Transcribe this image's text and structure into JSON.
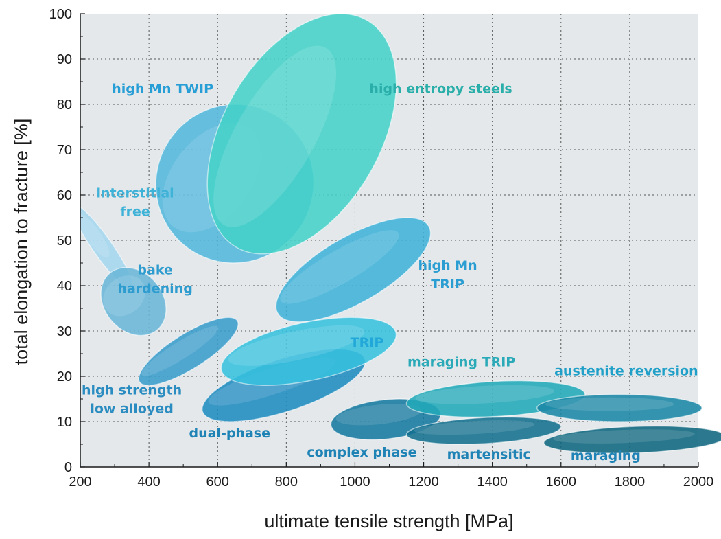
{
  "chart_data": {
    "type": "scatter",
    "title": "",
    "xlabel": "ultimate tensile strength [MPa]",
    "ylabel": "total elongation to fracture [%]",
    "xlim": [
      200,
      2000
    ],
    "ylim": [
      0,
      100
    ],
    "x_ticks": [
      "200",
      "400",
      "600",
      "800",
      "1000",
      "1200",
      "1400",
      "1600",
      "1800",
      "2000"
    ],
    "y_ticks": [
      "0",
      "10",
      "20",
      "30",
      "40",
      "50",
      "60",
      "70",
      "80",
      "90",
      "100"
    ],
    "grid": true,
    "background": "#e4e8ea",
    "regions": [
      {
        "name": "interstitial free",
        "label_lines": [
          "interstitial",
          "free"
        ],
        "x_range": [
          175,
          355
        ],
        "y_range": [
          39,
          58
        ],
        "angle_deg": -35,
        "color": "#a4d6ee",
        "label_x": 360,
        "label_y": 59.5,
        "label_color": "#3fb2d8"
      },
      {
        "name": "bake hardening",
        "label_lines": [
          "bake",
          "hardening"
        ],
        "x_range": [
          260,
          450
        ],
        "y_range": [
          29,
          44
        ],
        "angle_deg": -40,
        "color": "#6ab6d8",
        "label_x": 418,
        "label_y": 42.5,
        "label_color": "#2f9ccf"
      },
      {
        "name": "high strength low alloyed",
        "label_lines": [
          "high strength",
          "low alloyed"
        ],
        "x_range": [
          370,
          660
        ],
        "y_range": [
          18,
          33
        ],
        "angle_deg": -32,
        "color": "#3a9dcc",
        "label_x": 350,
        "label_y": 16,
        "label_color": "#2a8cc0"
      },
      {
        "name": "dual-phase",
        "label_lines": [
          "dual-phase"
        ],
        "x_range": [
          555,
          1030
        ],
        "y_range": [
          10,
          26
        ],
        "angle_deg": -18,
        "color": "#1f8bbf",
        "label_x": 635,
        "label_y": 6.5,
        "label_color": "#1f83b6"
      },
      {
        "name": "complex phase",
        "label_lines": [
          "complex phase"
        ],
        "x_range": [
          930,
          1250
        ],
        "y_range": [
          6,
          15
        ],
        "angle_deg": -6,
        "color": "#16799f",
        "label_x": 1020,
        "label_y": 2.3,
        "label_color": "#1f83b6"
      },
      {
        "name": "martensitic",
        "label_lines": [
          "martensitic"
        ],
        "x_range": [
          1150,
          1600
        ],
        "y_range": [
          5,
          11
        ],
        "angle_deg": -3,
        "color": "#136f8e",
        "label_x": 1390,
        "label_y": 1.8,
        "label_color": "#1f83b6"
      },
      {
        "name": "maraging",
        "label_lines": [
          "maraging"
        ],
        "x_range": [
          1550,
          2080
        ],
        "y_range": [
          3,
          9
        ],
        "angle_deg": -2,
        "color": "#0f677f",
        "label_x": 1730,
        "label_y": 1.5,
        "label_color": "#1f83b6"
      },
      {
        "name": "TRIP",
        "label_lines": [
          "TRIP"
        ],
        "x_range": [
          610,
          1120
        ],
        "y_range": [
          18,
          33
        ],
        "angle_deg": -12,
        "color": "#38c0de",
        "label_x": 1035,
        "label_y": 26.5,
        "label_color": "#22a8d8"
      },
      {
        "name": "high Mn TRIP",
        "label_lines": [
          "high Mn",
          "TRIP"
        ],
        "x_range": [
          770,
          1220
        ],
        "y_range": [
          32,
          55
        ],
        "angle_deg": -30,
        "color": "#40b2d8",
        "label_x": 1270,
        "label_y": 43.5,
        "label_color": "#2a9ed2"
      },
      {
        "name": "high Mn TWIP",
        "label_lines": [
          "high Mn TWIP"
        ],
        "x_range": [
          420,
          880
        ],
        "y_range": [
          45,
          80
        ],
        "angle_deg": -52,
        "color": "#53b7dc",
        "label_x": 440,
        "label_y": 82.5,
        "label_color": "#279ed6"
      },
      {
        "name": "high entropy steels",
        "label_lines": [
          "high entropy steels"
        ],
        "x_range": [
          570,
          1120
        ],
        "y_range": [
          47,
          100
        ],
        "angle_deg": -60,
        "color": "#46d2c8",
        "label_x": 1250,
        "label_y": 82.5,
        "label_color": "#2aaeaa"
      },
      {
        "name": "maraging TRIP",
        "label_lines": [
          "maraging TRIP"
        ],
        "x_range": [
          1150,
          1670
        ],
        "y_range": [
          11,
          19
        ],
        "angle_deg": -3,
        "color": "#22a8b8",
        "label_x": 1310,
        "label_y": 22.2,
        "label_color": "#2aaab8"
      },
      {
        "name": "austenite reversion",
        "label_lines": [
          "austenite reversion"
        ],
        "x_range": [
          1530,
          2010
        ],
        "y_range": [
          10,
          16
        ],
        "angle_deg": 0,
        "color": "#1b87a6",
        "label_x": 1790,
        "label_y": 20.2,
        "label_color": "#20a0c8"
      }
    ]
  }
}
